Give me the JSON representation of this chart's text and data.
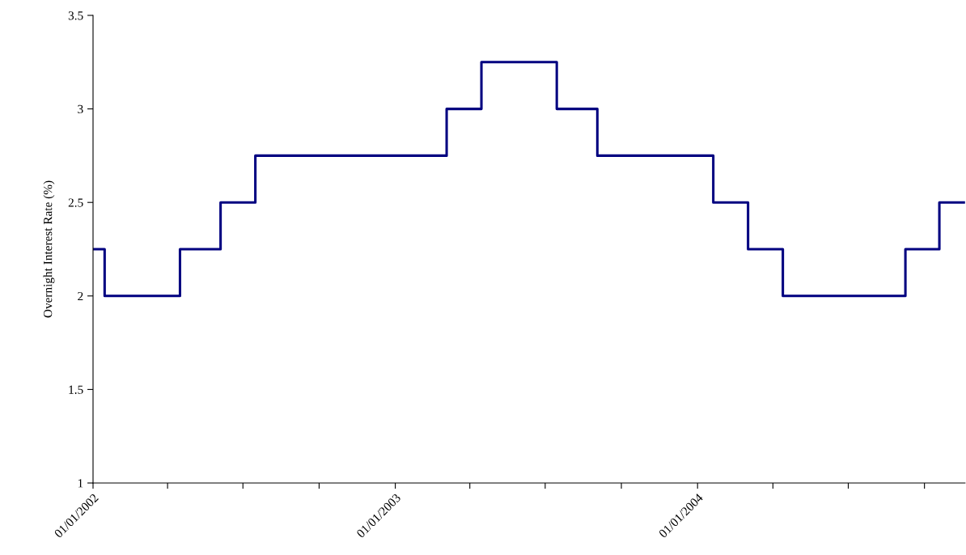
{
  "chart_data": {
    "type": "step",
    "ylabel": "Overnight Interest Rate (%)",
    "x": [
      "2002-01-01",
      "2002-01-15",
      "2002-04-16",
      "2002-06-04",
      "2002-07-16",
      "2003-03-04",
      "2003-04-15",
      "2003-07-15",
      "2003-09-02",
      "2004-01-20",
      "2004-03-02",
      "2004-04-13",
      "2004-09-08",
      "2004-10-19",
      "2004-11-19"
    ],
    "series": [
      {
        "color": "#000080",
        "values": [
          2.25,
          2.0,
          2.25,
          2.5,
          2.75,
          3.0,
          3.25,
          3.0,
          2.75,
          2.5,
          2.25,
          2.0,
          2.25,
          2.5,
          2.5
        ]
      }
    ],
    "xlim": [
      "2002-01-01",
      "2004-11-19"
    ],
    "xticks": [
      {
        "value": "2002-01-01",
        "label": "01/01/2002"
      },
      {
        "value": "2002-04-01",
        "label": null
      },
      {
        "value": "2002-07-01",
        "label": null
      },
      {
        "value": "2002-10-01",
        "label": null
      },
      {
        "value": "2003-01-01",
        "label": "01/01/2003"
      },
      {
        "value": "2003-04-01",
        "label": null
      },
      {
        "value": "2003-07-01",
        "label": null
      },
      {
        "value": "2003-10-01",
        "label": null
      },
      {
        "value": "2004-01-01",
        "label": "01/01/2004"
      },
      {
        "value": "2004-04-01",
        "label": null
      },
      {
        "value": "2004-07-01",
        "label": null
      },
      {
        "value": "2004-10-01",
        "label": null
      }
    ],
    "ylim": [
      1,
      3.5
    ],
    "yticks": [
      1,
      1.5,
      2,
      2.5,
      3,
      3.5
    ],
    "grid": false,
    "legend": false,
    "marker": "none",
    "line_style": "solid"
  }
}
